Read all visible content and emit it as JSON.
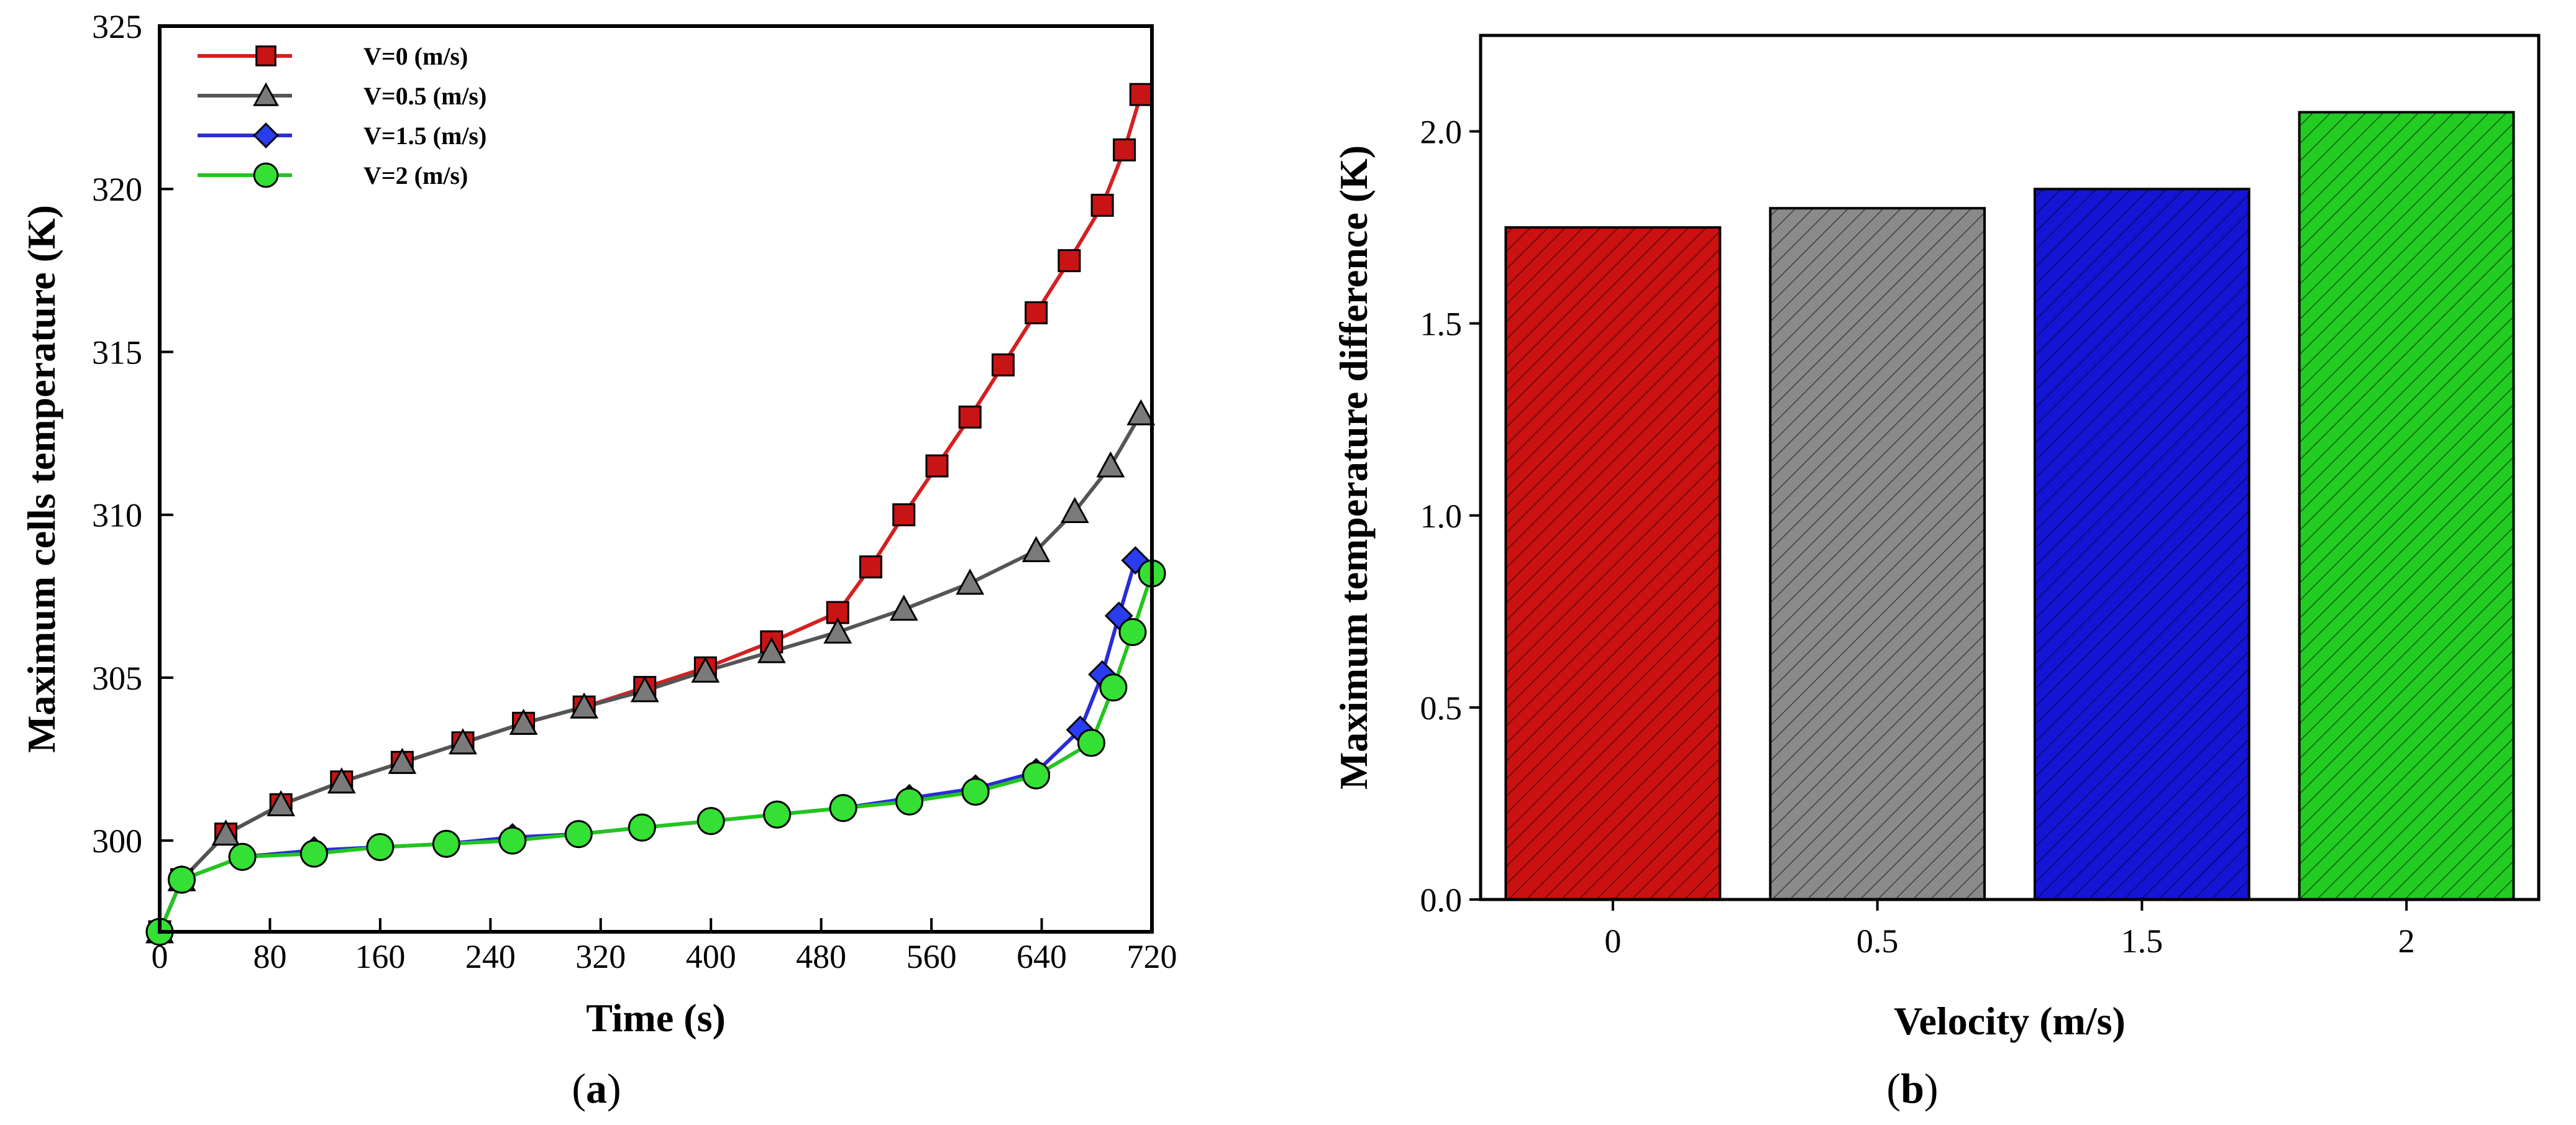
{
  "figure": {
    "caption_a": "a",
    "caption_b": "b"
  },
  "chart_data": [
    {
      "type": "line",
      "panel": "a",
      "xlabel": "Time (s)",
      "ylabel": "Maximum cells temperature (K)",
      "xlim": [
        0,
        720
      ],
      "ylim": [
        297.2,
        325
      ],
      "xticks": [
        0,
        80,
        160,
        240,
        320,
        400,
        480,
        560,
        640,
        720
      ],
      "yticks": [
        300,
        305,
        310,
        315,
        320,
        325
      ],
      "legend_position": "top-left",
      "series": [
        {
          "name": "V=0 (m/s)",
          "color": "#d42020",
          "marker": "square",
          "marker_color": "#c81414",
          "x": [
            0,
            16,
            48,
            88,
            132,
            176,
            220,
            264,
            308,
            352,
            396,
            444,
            492,
            516,
            540,
            564,
            588,
            612,
            636,
            660,
            684,
            700,
            712
          ],
          "y": [
            297.2,
            298.8,
            300.2,
            301.1,
            301.8,
            302.4,
            303.0,
            303.6,
            304.1,
            304.7,
            305.3,
            306.1,
            307.0,
            308.4,
            310.0,
            311.5,
            313.0,
            314.6,
            316.2,
            317.8,
            319.5,
            321.2,
            322.9
          ]
        },
        {
          "name": "V=0.5 (m/s)",
          "color": "#555555",
          "marker": "triangle",
          "marker_color": "#7a7a7a",
          "x": [
            0,
            16,
            48,
            88,
            132,
            176,
            220,
            264,
            308,
            352,
            396,
            444,
            492,
            540,
            588,
            636,
            664,
            690,
            712
          ],
          "y": [
            297.2,
            298.8,
            300.2,
            301.1,
            301.8,
            302.4,
            303.0,
            303.6,
            304.1,
            304.6,
            305.2,
            305.8,
            306.4,
            307.1,
            307.9,
            308.9,
            310.1,
            311.5,
            313.1
          ]
        },
        {
          "name": "V=1.5 (m/s)",
          "color": "#2b2bd8",
          "marker": "diamond",
          "marker_color": "#2a3cf0",
          "x": [
            0,
            16,
            60,
            112,
            160,
            208,
            256,
            304,
            350,
            400,
            448,
            496,
            544,
            592,
            636,
            668,
            684,
            696,
            708
          ],
          "y": [
            297.2,
            298.8,
            299.5,
            299.7,
            299.8,
            299.9,
            300.1,
            300.2,
            300.4,
            300.6,
            300.8,
            301.0,
            301.3,
            301.6,
            302.1,
            303.4,
            305.1,
            306.9,
            308.6
          ]
        },
        {
          "name": "V=2 (m/s)",
          "color": "#22c61c",
          "marker": "circle",
          "marker_color": "#33e033",
          "x": [
            0,
            16,
            60,
            112,
            160,
            208,
            256,
            304,
            350,
            400,
            448,
            496,
            544,
            592,
            636,
            676,
            692,
            706,
            720
          ],
          "y": [
            297.2,
            298.8,
            299.5,
            299.6,
            299.8,
            299.9,
            300.0,
            300.2,
            300.4,
            300.6,
            300.8,
            301.0,
            301.2,
            301.5,
            302.0,
            303.0,
            304.7,
            306.4,
            308.2
          ]
        }
      ]
    },
    {
      "type": "bar",
      "panel": "b",
      "xlabel": "Velocity (m/s)",
      "ylabel": "Maximum temperature difference (K)",
      "categories": [
        "0",
        "0.5",
        "1.5",
        "2"
      ],
      "values": [
        1.75,
        1.8,
        1.85,
        2.05
      ],
      "colors": [
        "#cc1111",
        "#8a8a8a",
        "#1515d6",
        "#22cc22"
      ],
      "fill_pattern": "diagonal-hatch",
      "ylim": [
        0,
        2.25
      ],
      "yticks": [
        "0.0",
        "0.5",
        "1.0",
        "1.5",
        "2.0"
      ]
    }
  ]
}
